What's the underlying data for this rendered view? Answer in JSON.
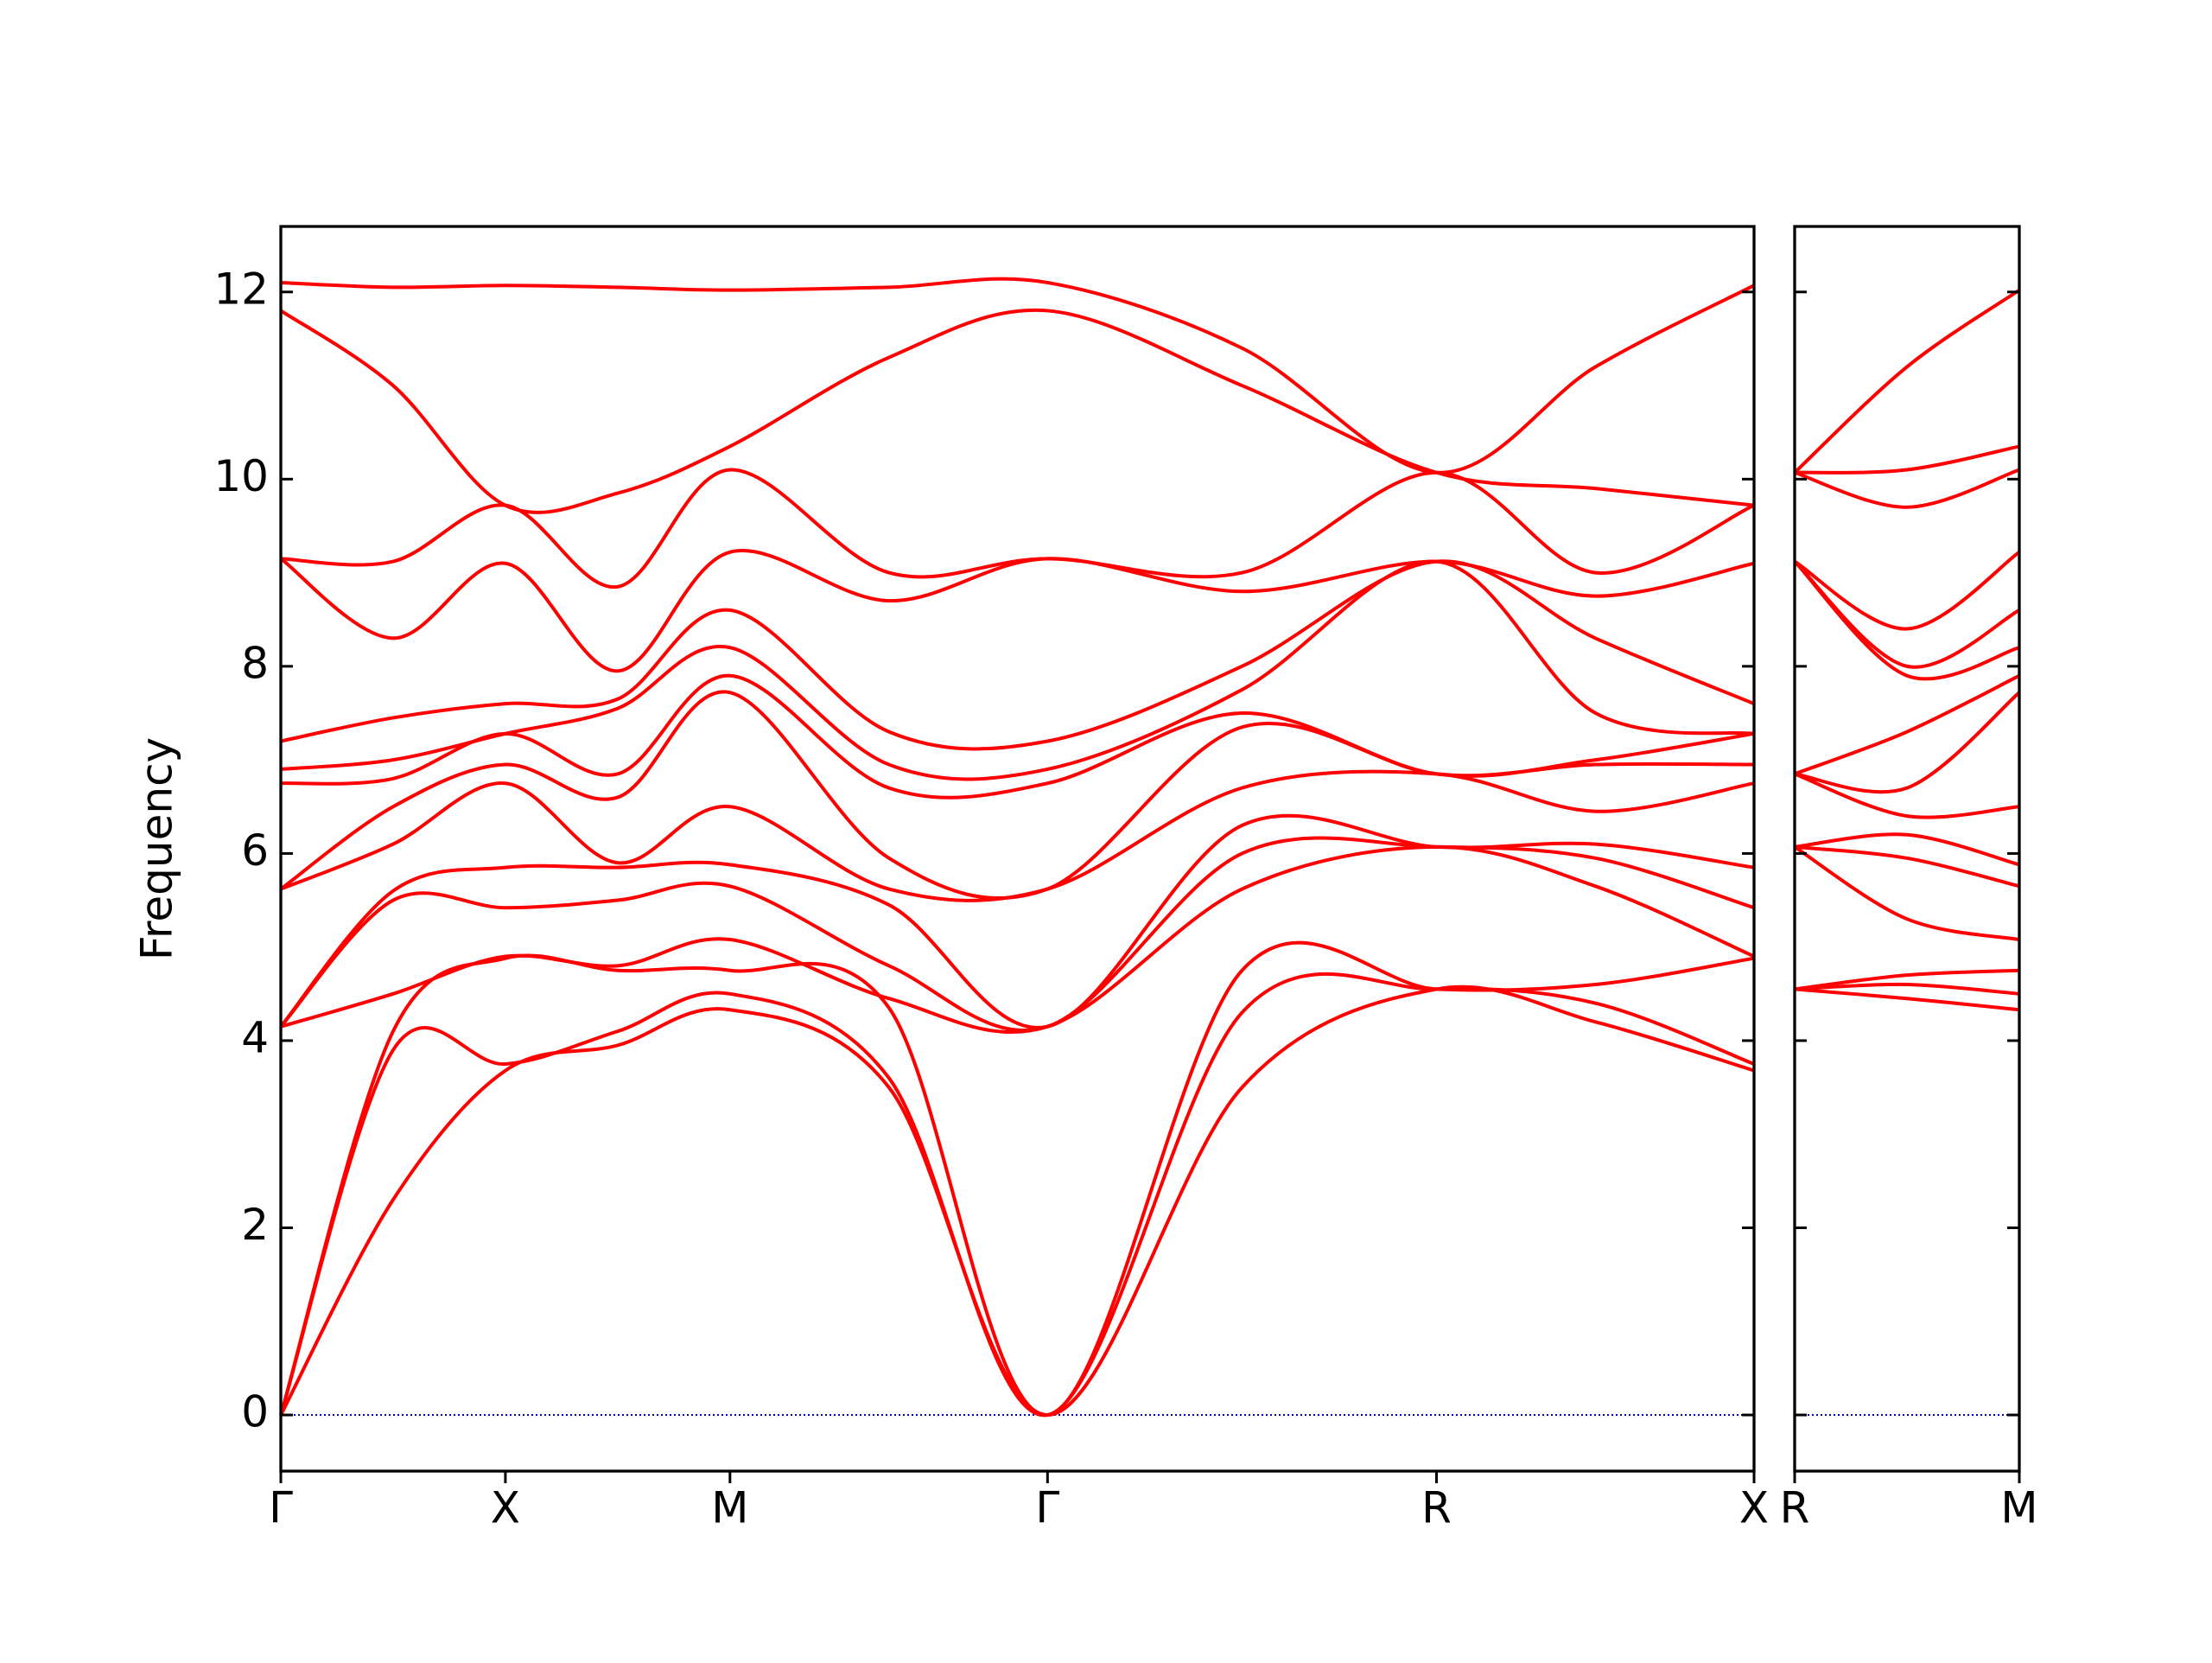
{
  "chart_data": [
    {
      "type": "line",
      "ylabel": "Frequency",
      "color": "#ff0000",
      "reference_line": 0,
      "reference_color": "#0000cc",
      "xlim": [
        0,
        3.28
      ],
      "ylim": [
        -0.6,
        12.7
      ],
      "x": [
        0,
        0.25,
        0.5,
        0.75,
        1.0,
        1.354,
        1.707,
        2.14,
        2.573,
        2.927,
        3.28
      ],
      "xticks": [
        {
          "value": 0,
          "label": "Γ"
        },
        {
          "value": 0.5,
          "label": "X"
        },
        {
          "value": 1.0,
          "label": "M"
        },
        {
          "value": 1.707,
          "label": "Γ"
        },
        {
          "value": 2.573,
          "label": "R"
        },
        {
          "value": 3.28,
          "label": "X"
        }
      ],
      "yticks": [
        0,
        2,
        4,
        6,
        8,
        10,
        12
      ],
      "ytick_labels": true,
      "series": [
        {
          "values": [
            0,
            2.3,
            3.68,
            3.95,
            4.33,
            3.5,
            0,
            3.5,
            4.55,
            4.2,
            3.68
          ]
        },
        {
          "values": [
            0,
            3.9,
            3.75,
            4.1,
            4.5,
            3.6,
            0,
            4.3,
            4.55,
            4.4,
            3.75
          ]
        },
        {
          "values": [
            0,
            4.1,
            4.88,
            4.75,
            4.75,
            4.35,
            0,
            4.75,
            4.55,
            4.6,
            4.88
          ]
        },
        {
          "values": [
            4.15,
            4.5,
            4.9,
            4.8,
            5.08,
            4.45,
            4.15,
            5.62,
            6.07,
            5.65,
            4.9
          ]
        },
        {
          "values": [
            4.15,
            5.5,
            5.42,
            5.5,
            5.65,
            4.8,
            4.15,
            6.0,
            6.07,
            5.95,
            5.42
          ]
        },
        {
          "values": [
            4.15,
            5.6,
            5.85,
            5.85,
            5.88,
            5.45,
            4.15,
            6.3,
            6.07,
            6.1,
            5.85
          ]
        },
        {
          "values": [
            5.62,
            6.1,
            6.75,
            5.9,
            6.5,
            5.62,
            5.62,
            6.7,
            6.85,
            6.45,
            6.75
          ]
        },
        {
          "values": [
            5.62,
            6.5,
            6.95,
            6.6,
            7.72,
            5.95,
            5.62,
            7.35,
            6.85,
            6.95,
            6.95
          ]
        },
        {
          "values": [
            6.75,
            6.8,
            7.28,
            6.85,
            7.9,
            6.7,
            6.75,
            7.5,
            6.85,
            7.0,
            7.28
          ]
        },
        {
          "values": [
            6.9,
            7.0,
            7.28,
            7.55,
            8.2,
            6.95,
            6.9,
            7.75,
            9.12,
            7.5,
            7.28
          ]
        },
        {
          "values": [
            7.2,
            7.45,
            7.6,
            7.65,
            8.6,
            7.3,
            7.2,
            8.0,
            9.12,
            8.3,
            7.6
          ]
        },
        {
          "values": [
            9.15,
            8.3,
            9.1,
            7.95,
            9.22,
            8.7,
            9.15,
            8.8,
            9.12,
            8.75,
            9.1
          ]
        },
        {
          "values": [
            9.15,
            9.12,
            9.72,
            8.85,
            10.1,
            9.0,
            9.15,
            9.0,
            10.07,
            9.0,
            9.72
          ]
        },
        {
          "values": [
            11.8,
            11.0,
            9.72,
            9.85,
            10.35,
            11.3,
            11.8,
            11.0,
            10.07,
            9.9,
            9.72
          ]
        },
        {
          "values": [
            12.1,
            12.05,
            12.07,
            12.05,
            12.02,
            12.05,
            12.1,
            11.4,
            10.07,
            11.2,
            12.07
          ]
        }
      ]
    },
    {
      "type": "line",
      "color": "#ff0000",
      "reference_line": 0,
      "reference_color": "#0000cc",
      "xlim": [
        0,
        0.5
      ],
      "ylim": [
        -0.6,
        12.7
      ],
      "x": [
        0,
        0.25,
        0.5
      ],
      "xticks": [
        {
          "value": 0,
          "label": "R"
        },
        {
          "value": 0.5,
          "label": "M"
        }
      ],
      "yticks": [
        0,
        2,
        4,
        6,
        8,
        10,
        12
      ],
      "ytick_labels": false,
      "series": [
        {
          "values": [
            4.55,
            4.45,
            4.33
          ]
        },
        {
          "values": [
            4.55,
            4.6,
            4.5
          ]
        },
        {
          "values": [
            4.55,
            4.7,
            4.75
          ]
        },
        {
          "values": [
            6.07,
            5.3,
            5.08
          ]
        },
        {
          "values": [
            6.07,
            5.95,
            5.65
          ]
        },
        {
          "values": [
            6.07,
            6.2,
            5.88
          ]
        },
        {
          "values": [
            6.85,
            6.4,
            6.5
          ]
        },
        {
          "values": [
            6.85,
            6.7,
            7.72
          ]
        },
        {
          "values": [
            6.85,
            7.3,
            7.9
          ]
        },
        {
          "values": [
            9.12,
            7.9,
            8.2
          ]
        },
        {
          "values": [
            9.12,
            8.0,
            8.6
          ]
        },
        {
          "values": [
            9.12,
            8.4,
            9.22
          ]
        },
        {
          "values": [
            10.07,
            9.7,
            10.1
          ]
        },
        {
          "values": [
            10.07,
            10.1,
            10.35
          ]
        },
        {
          "values": [
            10.07,
            11.2,
            12.02
          ]
        }
      ]
    }
  ]
}
